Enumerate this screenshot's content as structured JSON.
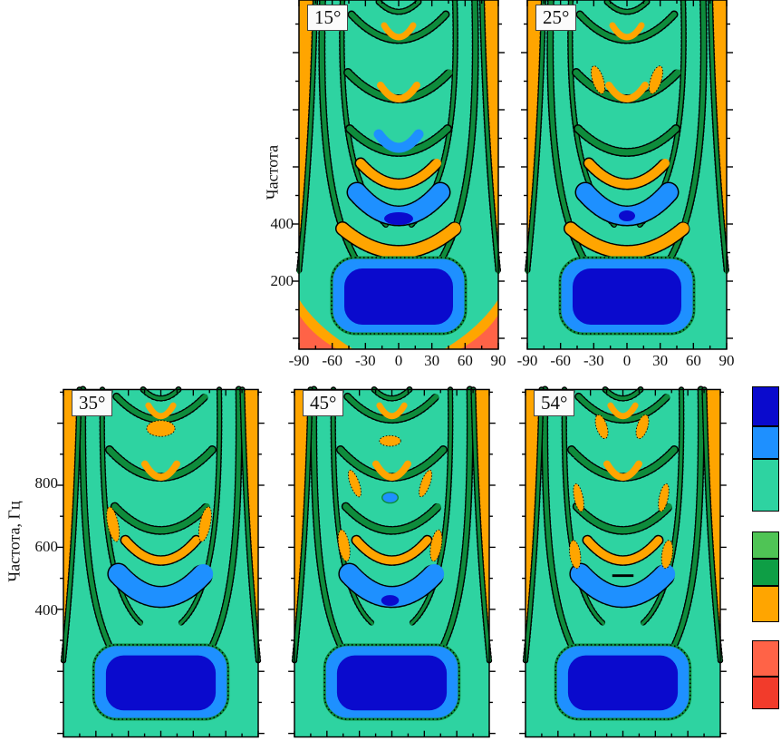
{
  "chart_data": {
    "type": "heatmap",
    "subtype": "filled-contour-panels",
    "description": "Five filled contour panels of level vs angle (deg) and frequency (Hz), labeled by angle 15–54 degrees, with discrete color scale bar at right.",
    "panels": [
      {
        "label": "15°"
      },
      {
        "label": "25°"
      },
      {
        "label": "35°"
      },
      {
        "label": "45°"
      },
      {
        "label": "54°"
      }
    ],
    "x_axis": {
      "range": [
        -90,
        90
      ],
      "tick_labels": [
        "-90",
        "-60",
        "-30",
        "0",
        "30",
        "60",
        "90"
      ],
      "minor_tick_step": 15
    },
    "y_axis_top": {
      "label": "Частота",
      "tick_labels": [
        "400",
        "200"
      ]
    },
    "y_axis_bottom": {
      "label": "Частота, Гц",
      "tick_labels": [
        "800",
        "600",
        "400"
      ]
    },
    "palette": {
      "teal": "#2ED3A1",
      "blue": "#1E90FF",
      "dark_blue": "#0A0ACD",
      "green": "#0E8C3C",
      "orange": "#FFA500",
      "tomato": "#FF6347",
      "red": "#F23B2B"
    },
    "colorbar": {
      "blocks": [
        {
          "color": "#0A0ACD",
          "h": 44
        },
        {
          "color": "#1E90FF",
          "h": 36
        },
        {
          "color": "#2ED3A1",
          "h": 58
        },
        {
          "color": "",
          "h": 22
        },
        {
          "color": "#4FC455",
          "h": 30
        },
        {
          "color": "#0E9E45",
          "h": 30
        },
        {
          "color": "#FFA500",
          "h": 40
        },
        {
          "color": "",
          "h": 20
        },
        {
          "color": "#FF6347",
          "h": 40
        },
        {
          "color": "#F23B2B",
          "h": 36
        }
      ]
    }
  }
}
